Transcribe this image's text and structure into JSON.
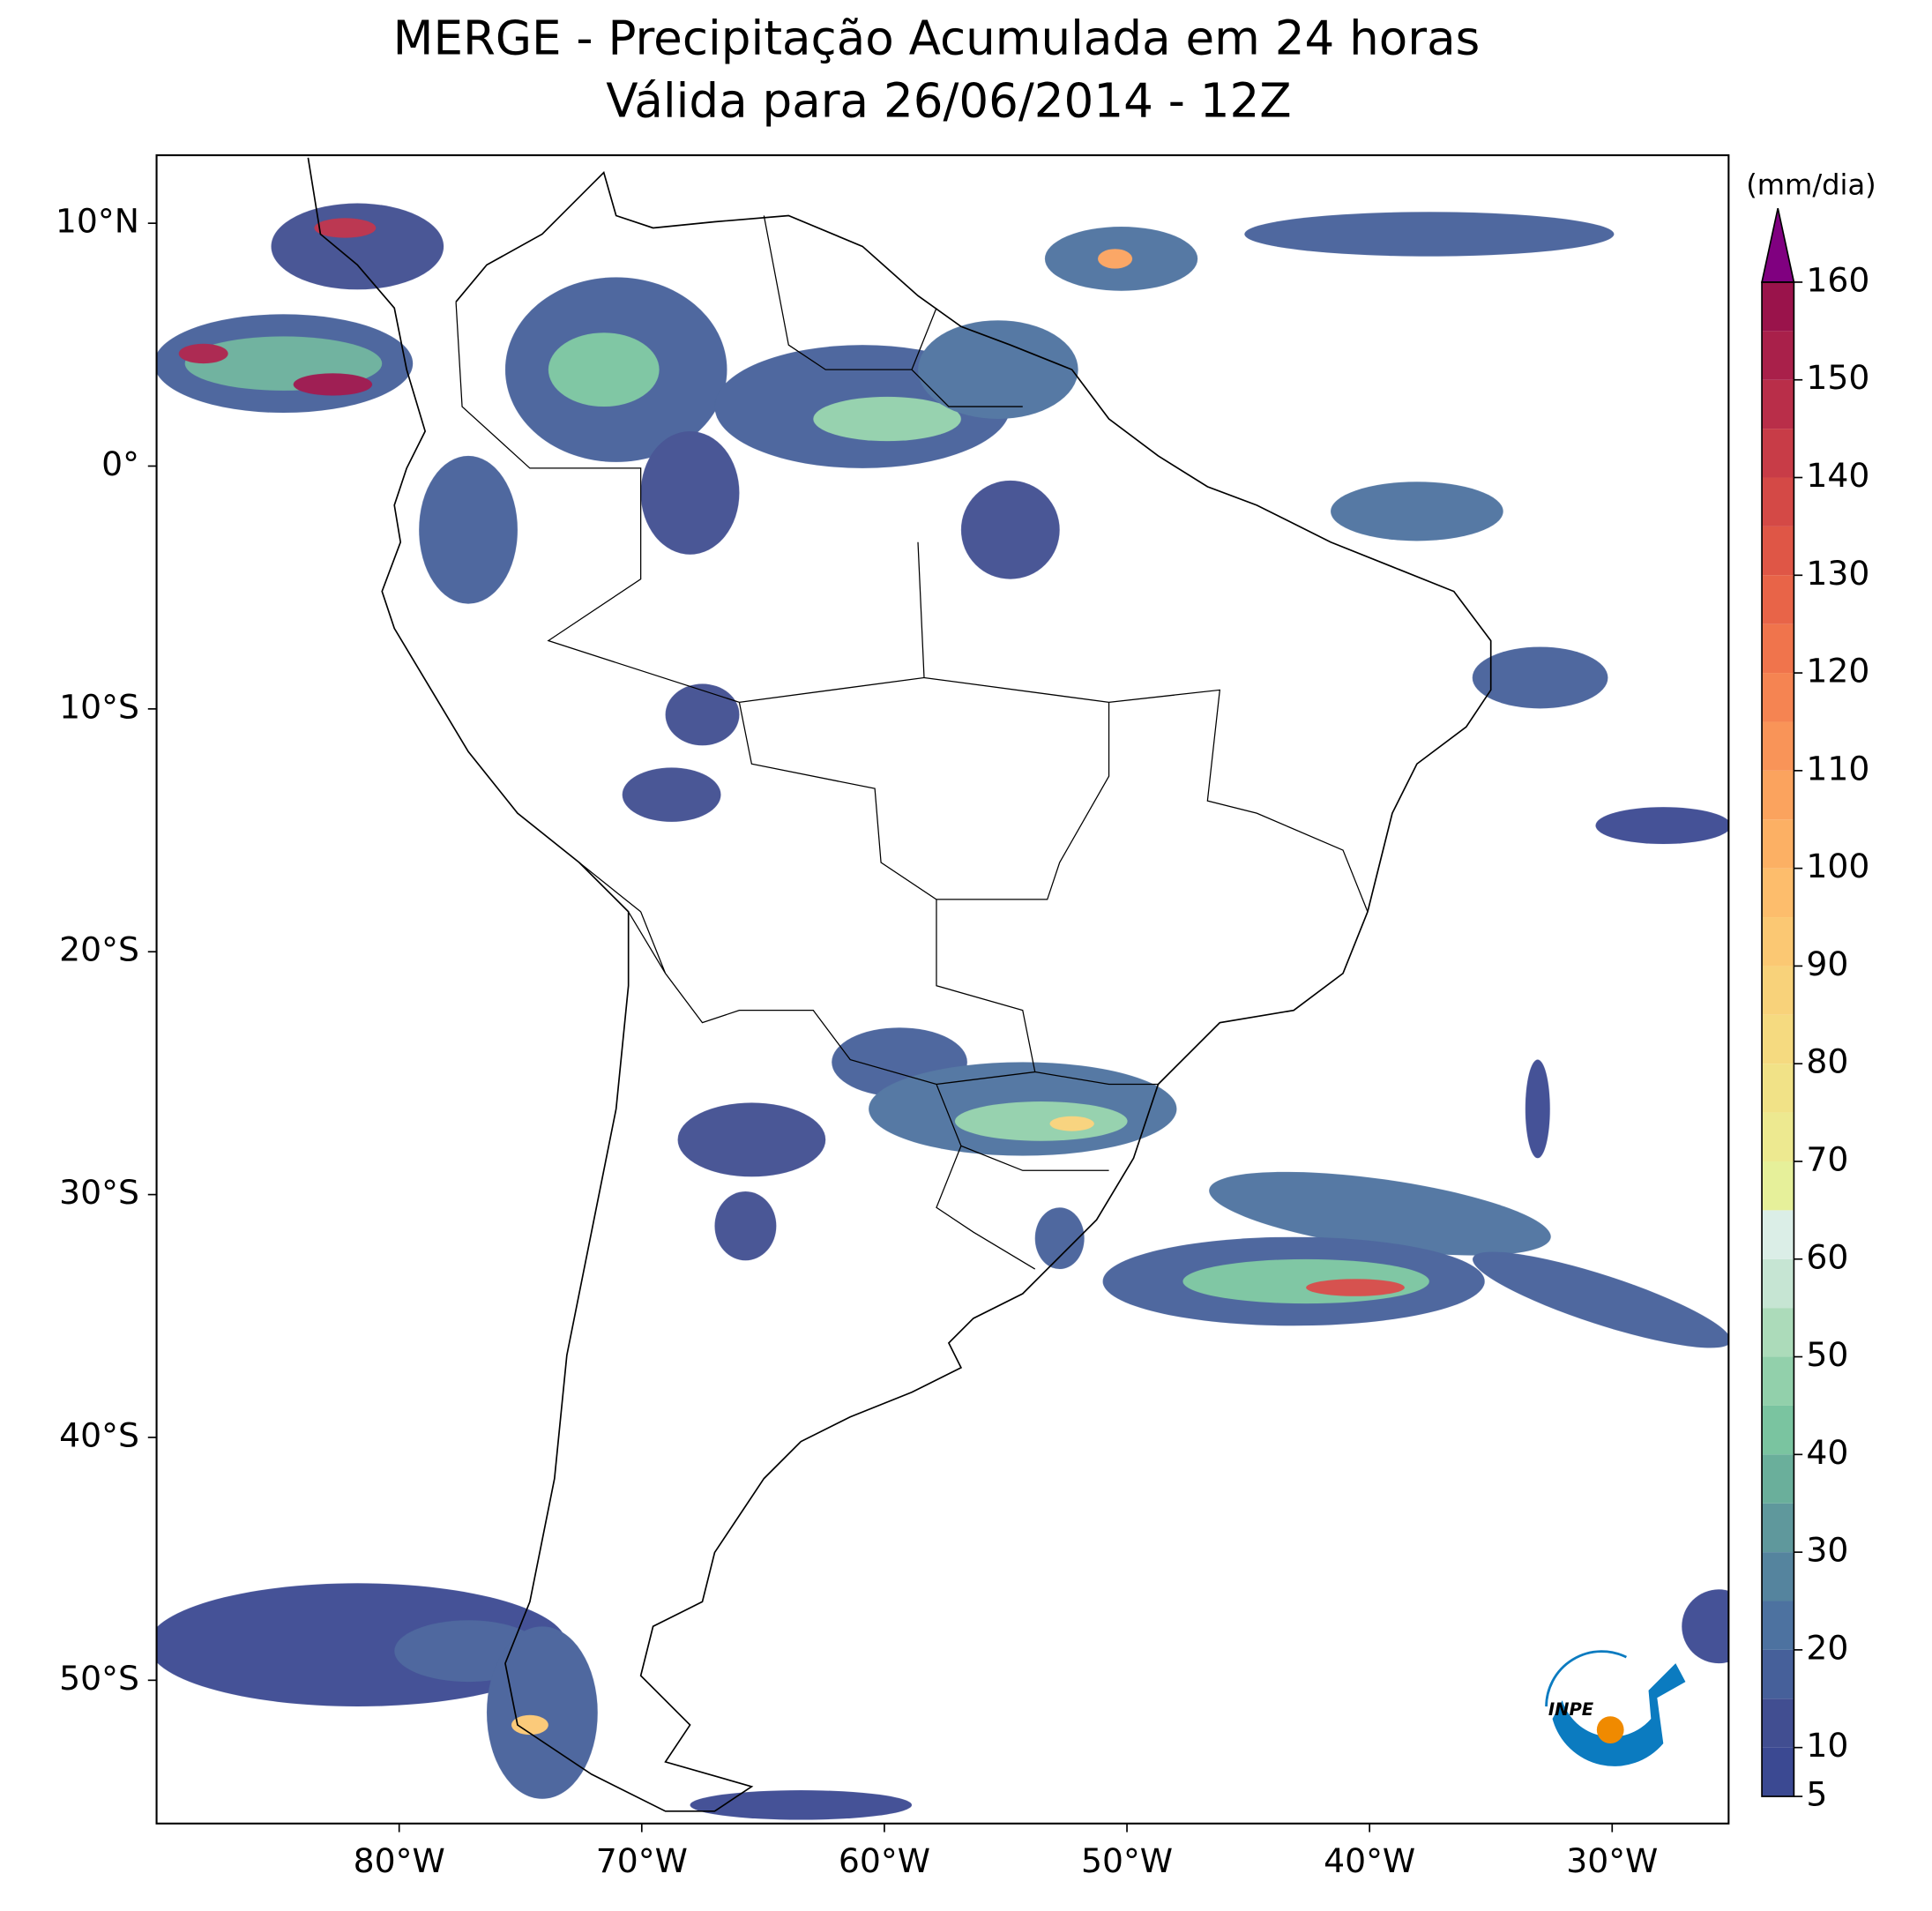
{
  "title": "MERGE - Precipitação Acumulada em 24 horas",
  "subtitle": "Válida para 26/06/2014 - 12Z",
  "map": {
    "xlim": [
      -90,
      -25.2
    ],
    "ylim": [
      -55.9,
      12.8
    ],
    "xticks": [
      {
        "value": -80,
        "label": "80°W"
      },
      {
        "value": -70,
        "label": "70°W"
      },
      {
        "value": -60,
        "label": "60°W"
      },
      {
        "value": -50,
        "label": "50°W"
      },
      {
        "value": -40,
        "label": "40°W"
      },
      {
        "value": -30,
        "label": "30°W"
      }
    ],
    "yticks": [
      {
        "value": 10,
        "label": "10°N"
      },
      {
        "value": 0,
        "label": "0°"
      },
      {
        "value": -10,
        "label": "10°S"
      },
      {
        "value": -20,
        "label": "20°S"
      },
      {
        "value": -30,
        "label": "30°S"
      },
      {
        "value": -40,
        "label": "40°S"
      },
      {
        "value": -50,
        "label": "50°S"
      }
    ]
  },
  "colorbar": {
    "label": "(mm/dia)",
    "levels": [
      5,
      10,
      15,
      20,
      25,
      30,
      35,
      40,
      45,
      50,
      55,
      60,
      65,
      70,
      75,
      80,
      85,
      90,
      95,
      100,
      105,
      110,
      115,
      120,
      125,
      130,
      135,
      140,
      145,
      150,
      155,
      160
    ],
    "colors": [
      "#3b4992",
      "#414e91",
      "#46609a",
      "#4d72a0",
      "#55849e",
      "#5f989c",
      "#6aaf9b",
      "#7ac4a0",
      "#92d0ab",
      "#acdbba",
      "#c6e5d3",
      "#dbeee7",
      "#e6f09a",
      "#ede990",
      "#f1e287",
      "#f5da80",
      "#f8d27a",
      "#fbc873",
      "#fdbd6c",
      "#fcb064",
      "#fba35e",
      "#f99458",
      "#f58452",
      "#f0744c",
      "#e86448",
      "#df5646",
      "#d44946",
      "#c83c47",
      "#b92e49",
      "#a9204a",
      "#9a134b"
    ],
    "extend_color": "#800080",
    "ticks": [
      5,
      10,
      20,
      30,
      40,
      50,
      60,
      70,
      80,
      90,
      100,
      110,
      120,
      130,
      140,
      150,
      160
    ]
  },
  "logo": "INPE"
}
